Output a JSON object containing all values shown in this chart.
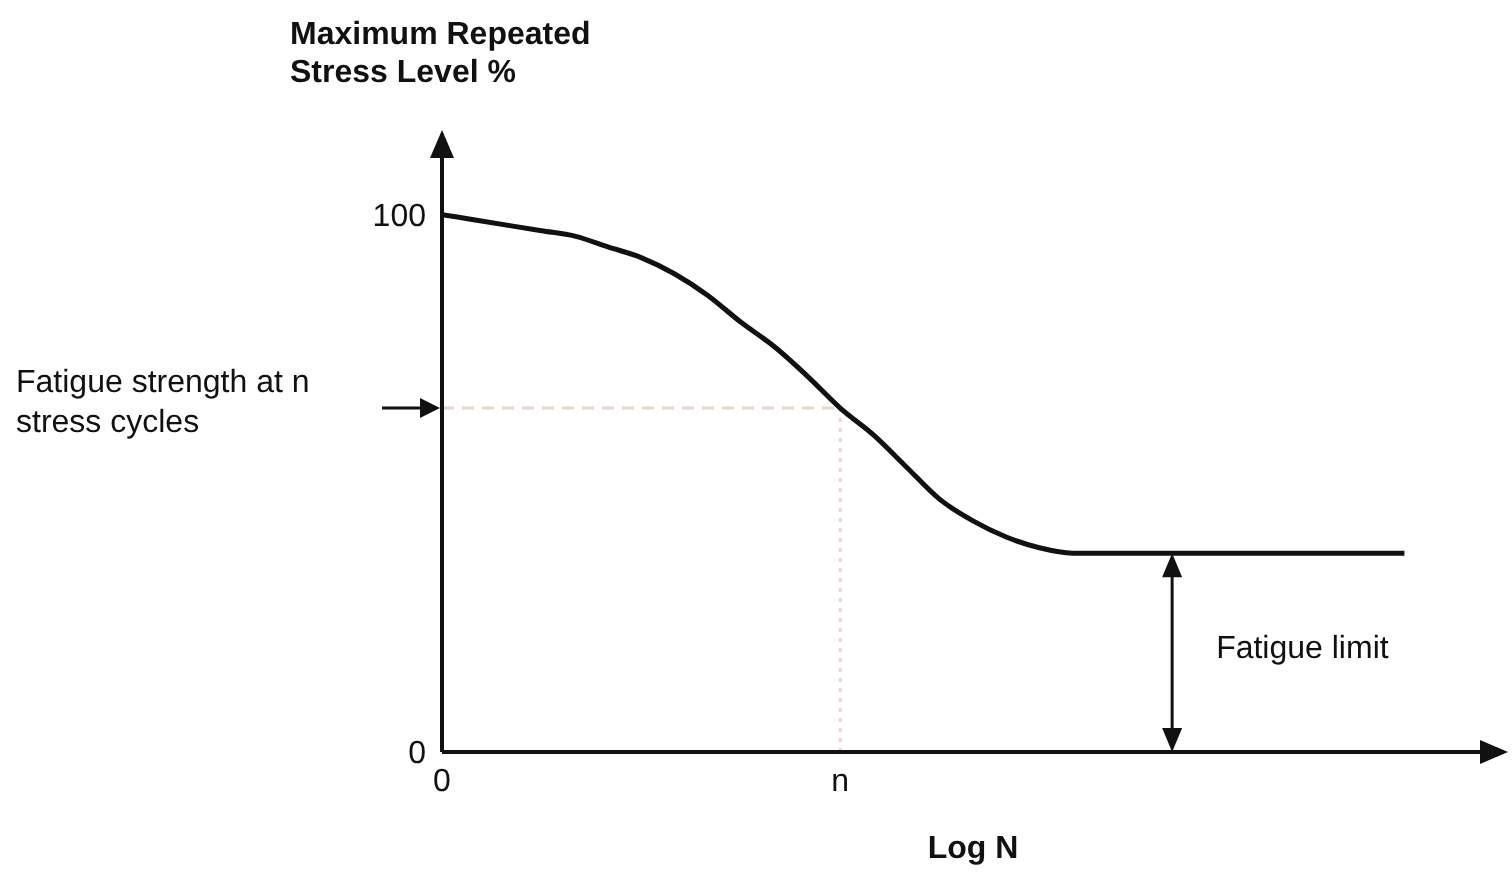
{
  "chart_data": {
    "type": "line",
    "ylabel": "Maximum Repeated Stress Level %",
    "xlabel": "Log N",
    "categories": [
      "0",
      null,
      null,
      null,
      null,
      null,
      null,
      null,
      null,
      null,
      null,
      null,
      "n",
      null,
      null,
      null,
      null,
      null,
      null,
      null,
      null,
      null,
      null,
      null,
      null,
      null,
      null,
      null,
      null,
      null,
      null,
      null,
      null
    ],
    "series": [
      {
        "color": "#111111",
        "values": [
          100,
          99,
          98,
          97,
          96,
          94,
          92,
          89,
          85,
          80,
          75.5,
          70,
          64,
          59,
          53,
          47,
          43,
          40,
          38,
          37,
          37,
          37,
          37,
          37,
          37,
          37,
          37,
          37,
          37,
          37,
          null,
          null,
          null
        ]
      }
    ],
    "ylim": [
      0,
      115
    ],
    "yticks": [
      0,
      100
    ],
    "ref_lines": [
      {
        "axis": "y",
        "value": 64,
        "color": "#e6d6cc",
        "line_style": "dashed"
      },
      {
        "axis": "x",
        "value": "n",
        "color": "#e6d6cc",
        "line_style": "dotted"
      }
    ],
    "annotations": [
      "Fatigue strength at n stress cycles",
      {
        "text": "Fatigue limit",
        "y": 37
      }
    ],
    "grid": false,
    "legend": false,
    "marker": "none",
    "line_style": "solid"
  }
}
